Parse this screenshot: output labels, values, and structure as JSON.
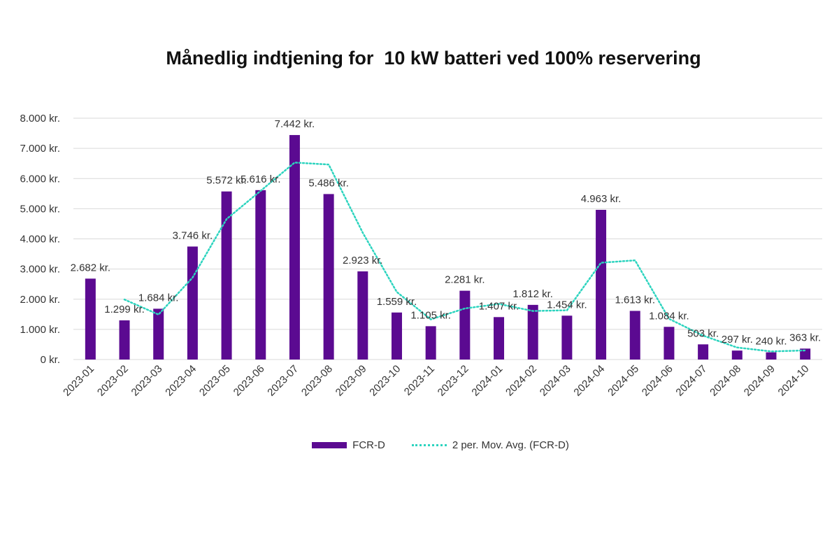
{
  "chart_data": {
    "type": "bar",
    "title": "Månedlig indtjening for  10 kW batteri ved 100% reservering",
    "categories": [
      "2023-01",
      "2023-02",
      "2023-03",
      "2023-04",
      "2023-05",
      "2023-06",
      "2023-07",
      "2023-08",
      "2023-09",
      "2023-10",
      "2023-11",
      "2023-12",
      "2024-01",
      "2024-02",
      "2024-03",
      "2024-04",
      "2024-05",
      "2024-06",
      "2024-07",
      "2024-08",
      "2024-09",
      "2024-10"
    ],
    "series": [
      {
        "name": "FCR-D",
        "type": "bar",
        "color": "#5B0A91",
        "values": [
          2682,
          1299,
          1684,
          3746,
          5572,
          5616,
          7442,
          5486,
          2923,
          1559,
          1105,
          2281,
          1407,
          1812,
          1454,
          4963,
          1613,
          1084,
          503,
          297,
          240,
          363
        ],
        "labels": [
          "2.682 kr.",
          "1.299 kr.",
          "1.684 kr.",
          "3.746 kr.",
          "5.572 kr.",
          "5.616 kr.",
          "7.442 kr.",
          "5.486 kr.",
          "2.923 kr.",
          "1.559 kr.",
          "1.105 kr.",
          "2.281 kr.",
          "1.407 kr.",
          "1.812 kr.",
          "1.454 kr.",
          "4.963 kr.",
          "1.613 kr.",
          "1.084 kr.",
          "503 kr.",
          "297 kr.",
          "240 kr.",
          "363 kr."
        ]
      },
      {
        "name": "2 per. Mov. Avg. (FCR-D)",
        "type": "line",
        "style": "dotted",
        "color": "#2DD4BF",
        "values": [
          null,
          1990.5,
          1491.5,
          2715,
          4659,
          5594,
          6529,
          6464,
          4204.5,
          2241,
          1332,
          1693,
          1844,
          1609.5,
          1633,
          3208.5,
          3288,
          1348.5,
          793.5,
          400,
          268.5,
          301.5
        ]
      }
    ],
    "ylim": [
      0,
      8000
    ],
    "yticks": [
      0,
      1000,
      2000,
      3000,
      4000,
      5000,
      6000,
      7000,
      8000
    ],
    "ytick_labels": [
      "0 kr.",
      "1.000 kr.",
      "2.000 kr.",
      "3.000 kr.",
      "4.000 kr.",
      "5.000 kr.",
      "6.000 kr.",
      "7.000 kr.",
      "8.000 kr."
    ],
    "grid": true,
    "legend_position": "bottom",
    "legend": [
      "FCR-D",
      "2 per. Mov. Avg. (FCR-D)"
    ]
  }
}
